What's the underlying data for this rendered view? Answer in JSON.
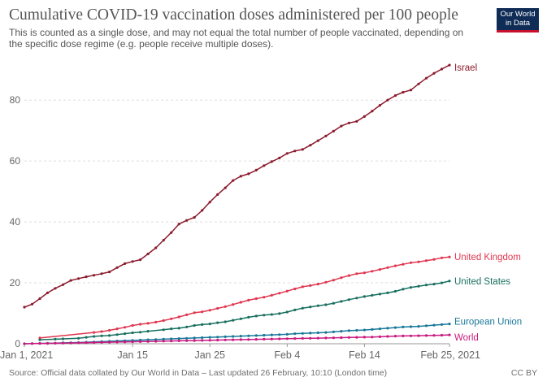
{
  "title": "Cumulative COVID-19 vaccination doses administered per 100 people",
  "subtitle": "This is counted as a single dose, and may not equal the total number of people vaccinated, depending on the specific dose regime (e.g. people receive multiple doses).",
  "logo": {
    "line1": "Our World",
    "line2": "in Data"
  },
  "footer": {
    "source": "Source: Official data collated by Our World in Data – Last updated 26 February, 10:10 (London time)",
    "license": "CC BY"
  },
  "chart_data": {
    "type": "line",
    "title": "Cumulative COVID-19 vaccination doses administered per 100 people",
    "xlabel": "",
    "ylabel": "",
    "x_range": [
      "2021-01-01",
      "2021-02-25"
    ],
    "ylim": [
      0,
      95
    ],
    "y_ticks": [
      0,
      20,
      40,
      60,
      80
    ],
    "x_ticks": [
      {
        "date": "2021-01-01",
        "label": "Jan 1, 2021"
      },
      {
        "date": "2021-01-15",
        "label": "Jan 15"
      },
      {
        "date": "2021-01-25",
        "label": "Jan 25"
      },
      {
        "date": "2021-02-04",
        "label": "Feb 4"
      },
      {
        "date": "2021-02-14",
        "label": "Feb 14"
      },
      {
        "date": "2021-02-25",
        "label": "Feb 25, 2021"
      }
    ],
    "grid": "horizontal dashed",
    "legend": "end-of-line labels",
    "series": [
      {
        "name": "Israel",
        "color": "#8c1b2d",
        "points": [
          [
            "2021-01-01",
            12.0
          ],
          [
            "2021-01-02",
            13.0
          ],
          [
            "2021-01-03",
            14.8
          ],
          [
            "2021-01-04",
            16.7
          ],
          [
            "2021-01-05",
            18.2
          ],
          [
            "2021-01-06",
            19.4
          ],
          [
            "2021-01-07",
            20.8
          ],
          [
            "2021-01-08",
            21.4
          ],
          [
            "2021-01-09",
            22.0
          ],
          [
            "2021-01-10",
            22.5
          ],
          [
            "2021-01-11",
            23.0
          ],
          [
            "2021-01-12",
            23.6
          ],
          [
            "2021-01-13",
            25.0
          ],
          [
            "2021-01-14",
            26.3
          ],
          [
            "2021-01-15",
            27.0
          ],
          [
            "2021-01-16",
            27.6
          ],
          [
            "2021-01-17",
            29.5
          ],
          [
            "2021-01-18",
            31.5
          ],
          [
            "2021-01-19",
            34.0
          ],
          [
            "2021-01-20",
            36.5
          ],
          [
            "2021-01-21",
            39.3
          ],
          [
            "2021-01-22",
            40.5
          ],
          [
            "2021-01-23",
            41.5
          ],
          [
            "2021-01-24",
            43.8
          ],
          [
            "2021-01-25",
            46.5
          ],
          [
            "2021-01-26",
            49.0
          ],
          [
            "2021-01-27",
            51.2
          ],
          [
            "2021-01-28",
            53.6
          ],
          [
            "2021-01-29",
            55.0
          ],
          [
            "2021-01-30",
            55.8
          ],
          [
            "2021-01-31",
            57.0
          ],
          [
            "2021-02-01",
            58.5
          ],
          [
            "2021-02-02",
            59.8
          ],
          [
            "2021-02-03",
            61.0
          ],
          [
            "2021-02-04",
            62.5
          ],
          [
            "2021-02-05",
            63.3
          ],
          [
            "2021-02-06",
            63.8
          ],
          [
            "2021-02-07",
            65.2
          ],
          [
            "2021-02-08",
            66.7
          ],
          [
            "2021-02-09",
            68.2
          ],
          [
            "2021-02-10",
            69.8
          ],
          [
            "2021-02-11",
            71.5
          ],
          [
            "2021-02-12",
            72.5
          ],
          [
            "2021-02-13",
            73.0
          ],
          [
            "2021-02-14",
            74.6
          ],
          [
            "2021-02-15",
            76.4
          ],
          [
            "2021-02-16",
            78.3
          ],
          [
            "2021-02-17",
            80.0
          ],
          [
            "2021-02-18",
            81.5
          ],
          [
            "2021-02-19",
            82.6
          ],
          [
            "2021-02-20",
            83.3
          ],
          [
            "2021-02-21",
            85.3
          ],
          [
            "2021-02-22",
            87.2
          ],
          [
            "2021-02-23",
            88.8
          ],
          [
            "2021-02-24",
            90.2
          ],
          [
            "2021-02-25",
            91.5
          ]
        ]
      },
      {
        "name": "United Kingdom",
        "color": "#e0364f",
        "points": [
          [
            "2021-01-03",
            1.9
          ],
          [
            "2021-01-10",
            3.7
          ],
          [
            "2021-01-11",
            4.0
          ],
          [
            "2021-01-12",
            4.4
          ],
          [
            "2021-01-13",
            4.9
          ],
          [
            "2021-01-14",
            5.4
          ],
          [
            "2021-01-15",
            6.0
          ],
          [
            "2021-01-16",
            6.4
          ],
          [
            "2021-01-17",
            6.7
          ],
          [
            "2021-01-18",
            7.1
          ],
          [
            "2021-01-19",
            7.6
          ],
          [
            "2021-01-20",
            8.2
          ],
          [
            "2021-01-21",
            8.8
          ],
          [
            "2021-01-22",
            9.5
          ],
          [
            "2021-01-23",
            10.2
          ],
          [
            "2021-01-24",
            10.5
          ],
          [
            "2021-01-25",
            11.0
          ],
          [
            "2021-01-26",
            11.6
          ],
          [
            "2021-01-27",
            12.2
          ],
          [
            "2021-01-28",
            12.9
          ],
          [
            "2021-01-29",
            13.6
          ],
          [
            "2021-01-30",
            14.3
          ],
          [
            "2021-01-31",
            14.8
          ],
          [
            "2021-02-01",
            15.3
          ],
          [
            "2021-02-02",
            15.9
          ],
          [
            "2021-02-03",
            16.6
          ],
          [
            "2021-02-04",
            17.3
          ],
          [
            "2021-02-05",
            18.0
          ],
          [
            "2021-02-06",
            18.7
          ],
          [
            "2021-02-07",
            19.1
          ],
          [
            "2021-02-08",
            19.6
          ],
          [
            "2021-02-09",
            20.2
          ],
          [
            "2021-02-10",
            20.9
          ],
          [
            "2021-02-11",
            21.7
          ],
          [
            "2021-02-12",
            22.4
          ],
          [
            "2021-02-13",
            23.0
          ],
          [
            "2021-02-14",
            23.3
          ],
          [
            "2021-02-15",
            23.8
          ],
          [
            "2021-02-16",
            24.4
          ],
          [
            "2021-02-17",
            25.0
          ],
          [
            "2021-02-18",
            25.6
          ],
          [
            "2021-02-19",
            26.1
          ],
          [
            "2021-02-20",
            26.6
          ],
          [
            "2021-02-21",
            26.9
          ],
          [
            "2021-02-22",
            27.3
          ],
          [
            "2021-02-23",
            27.7
          ],
          [
            "2021-02-24",
            28.2
          ],
          [
            "2021-02-25",
            28.5
          ]
        ]
      },
      {
        "name": "United States",
        "color": "#18705f",
        "points": [
          [
            "2021-01-03",
            1.3
          ],
          [
            "2021-01-05",
            1.5
          ],
          [
            "2021-01-06",
            1.6
          ],
          [
            "2021-01-08",
            1.8
          ],
          [
            "2021-01-09",
            2.1
          ],
          [
            "2021-01-10",
            2.4
          ],
          [
            "2021-01-11",
            2.6
          ],
          [
            "2021-01-12",
            2.7
          ],
          [
            "2021-01-13",
            3.0
          ],
          [
            "2021-01-14",
            3.3
          ],
          [
            "2021-01-15",
            3.6
          ],
          [
            "2021-01-16",
            3.8
          ],
          [
            "2021-01-17",
            4.1
          ],
          [
            "2021-01-19",
            4.6
          ],
          [
            "2021-01-20",
            4.9
          ],
          [
            "2021-01-21",
            5.1
          ],
          [
            "2021-01-22",
            5.5
          ],
          [
            "2021-01-23",
            6.0
          ],
          [
            "2021-01-24",
            6.3
          ],
          [
            "2021-01-25",
            6.5
          ],
          [
            "2021-01-26",
            6.9
          ],
          [
            "2021-01-27",
            7.2
          ],
          [
            "2021-01-28",
            7.7
          ],
          [
            "2021-01-29",
            8.2
          ],
          [
            "2021-01-30",
            8.7
          ],
          [
            "2021-01-31",
            9.1
          ],
          [
            "2021-02-01",
            9.4
          ],
          [
            "2021-02-02",
            9.6
          ],
          [
            "2021-02-03",
            9.9
          ],
          [
            "2021-02-04",
            10.4
          ],
          [
            "2021-02-05",
            11.1
          ],
          [
            "2021-02-06",
            11.7
          ],
          [
            "2021-02-07",
            12.1
          ],
          [
            "2021-02-08",
            12.5
          ],
          [
            "2021-02-09",
            12.8
          ],
          [
            "2021-02-10",
            13.3
          ],
          [
            "2021-02-11",
            13.9
          ],
          [
            "2021-02-12",
            14.5
          ],
          [
            "2021-02-13",
            15.0
          ],
          [
            "2021-02-14",
            15.5
          ],
          [
            "2021-02-15",
            15.9
          ],
          [
            "2021-02-16",
            16.3
          ],
          [
            "2021-02-17",
            16.7
          ],
          [
            "2021-02-18",
            17.2
          ],
          [
            "2021-02-19",
            17.9
          ],
          [
            "2021-02-20",
            18.5
          ],
          [
            "2021-02-21",
            18.9
          ],
          [
            "2021-02-22",
            19.3
          ],
          [
            "2021-02-23",
            19.6
          ],
          [
            "2021-02-24",
            20.0
          ],
          [
            "2021-02-25",
            20.6
          ]
        ]
      },
      {
        "name": "European Union",
        "color": "#19789a",
        "points": [
          [
            "2021-01-01",
            0.0
          ],
          [
            "2021-01-02",
            0.05
          ],
          [
            "2021-01-03",
            0.1
          ],
          [
            "2021-01-04",
            0.15
          ],
          [
            "2021-01-05",
            0.2
          ],
          [
            "2021-01-06",
            0.3
          ],
          [
            "2021-01-07",
            0.35
          ],
          [
            "2021-01-08",
            0.4
          ],
          [
            "2021-01-09",
            0.5
          ],
          [
            "2021-01-10",
            0.6
          ],
          [
            "2021-01-11",
            0.7
          ],
          [
            "2021-01-12",
            0.8
          ],
          [
            "2021-01-13",
            0.9
          ],
          [
            "2021-01-14",
            1.0
          ],
          [
            "2021-01-15",
            1.1
          ],
          [
            "2021-01-16",
            1.2
          ],
          [
            "2021-01-17",
            1.3
          ],
          [
            "2021-01-18",
            1.4
          ],
          [
            "2021-01-19",
            1.5
          ],
          [
            "2021-01-20",
            1.6
          ],
          [
            "2021-01-21",
            1.7
          ],
          [
            "2021-01-22",
            1.8
          ],
          [
            "2021-01-23",
            1.9
          ],
          [
            "2021-01-24",
            2.0
          ],
          [
            "2021-01-25",
            2.1
          ],
          [
            "2021-01-26",
            2.2
          ],
          [
            "2021-01-27",
            2.3
          ],
          [
            "2021-01-28",
            2.4
          ],
          [
            "2021-01-29",
            2.5
          ],
          [
            "2021-01-30",
            2.6
          ],
          [
            "2021-01-31",
            2.7
          ],
          [
            "2021-02-01",
            2.8
          ],
          [
            "2021-02-02",
            2.9
          ],
          [
            "2021-02-03",
            3.0
          ],
          [
            "2021-02-04",
            3.1
          ],
          [
            "2021-02-05",
            3.3
          ],
          [
            "2021-02-06",
            3.4
          ],
          [
            "2021-02-07",
            3.5
          ],
          [
            "2021-02-08",
            3.6
          ],
          [
            "2021-02-09",
            3.7
          ],
          [
            "2021-02-10",
            3.9
          ],
          [
            "2021-02-11",
            4.1
          ],
          [
            "2021-02-12",
            4.3
          ],
          [
            "2021-02-13",
            4.4
          ],
          [
            "2021-02-14",
            4.5
          ],
          [
            "2021-02-15",
            4.7
          ],
          [
            "2021-02-16",
            4.9
          ],
          [
            "2021-02-17",
            5.1
          ],
          [
            "2021-02-18",
            5.3
          ],
          [
            "2021-02-19",
            5.5
          ],
          [
            "2021-02-20",
            5.6
          ],
          [
            "2021-02-21",
            5.7
          ],
          [
            "2021-02-22",
            5.9
          ],
          [
            "2021-02-23",
            6.1
          ],
          [
            "2021-02-24",
            6.3
          ],
          [
            "2021-02-25",
            6.5
          ]
        ]
      },
      {
        "name": "World",
        "color": "#c8197f",
        "points": [
          [
            "2021-01-01",
            0.0
          ],
          [
            "2021-01-02",
            0.05
          ],
          [
            "2021-01-03",
            0.1
          ],
          [
            "2021-01-04",
            0.12
          ],
          [
            "2021-01-05",
            0.15
          ],
          [
            "2021-01-06",
            0.2
          ],
          [
            "2021-01-07",
            0.25
          ],
          [
            "2021-01-08",
            0.3
          ],
          [
            "2021-01-09",
            0.35
          ],
          [
            "2021-01-10",
            0.4
          ],
          [
            "2021-01-11",
            0.45
          ],
          [
            "2021-01-12",
            0.5
          ],
          [
            "2021-01-13",
            0.55
          ],
          [
            "2021-01-14",
            0.6
          ],
          [
            "2021-01-15",
            0.65
          ],
          [
            "2021-01-16",
            0.7
          ],
          [
            "2021-01-17",
            0.75
          ],
          [
            "2021-01-18",
            0.8
          ],
          [
            "2021-01-19",
            0.85
          ],
          [
            "2021-01-20",
            0.9
          ],
          [
            "2021-01-21",
            0.95
          ],
          [
            "2021-01-22",
            1.0
          ],
          [
            "2021-01-23",
            1.05
          ],
          [
            "2021-01-24",
            1.1
          ],
          [
            "2021-01-25",
            1.15
          ],
          [
            "2021-01-26",
            1.2
          ],
          [
            "2021-01-27",
            1.25
          ],
          [
            "2021-01-28",
            1.3
          ],
          [
            "2021-01-29",
            1.35
          ],
          [
            "2021-01-30",
            1.4
          ],
          [
            "2021-01-31",
            1.45
          ],
          [
            "2021-02-01",
            1.5
          ],
          [
            "2021-02-02",
            1.55
          ],
          [
            "2021-02-03",
            1.6
          ],
          [
            "2021-02-04",
            1.65
          ],
          [
            "2021-02-05",
            1.7
          ],
          [
            "2021-02-06",
            1.75
          ],
          [
            "2021-02-07",
            1.8
          ],
          [
            "2021-02-08",
            1.85
          ],
          [
            "2021-02-09",
            1.9
          ],
          [
            "2021-02-10",
            1.95
          ],
          [
            "2021-02-11",
            2.0
          ],
          [
            "2021-02-12",
            2.05
          ],
          [
            "2021-02-13",
            2.1
          ],
          [
            "2021-02-14",
            2.15
          ],
          [
            "2021-02-15",
            2.2
          ],
          [
            "2021-02-16",
            2.3
          ],
          [
            "2021-02-17",
            2.4
          ],
          [
            "2021-02-18",
            2.5
          ],
          [
            "2021-02-19",
            2.55
          ],
          [
            "2021-02-20",
            2.6
          ],
          [
            "2021-02-21",
            2.65
          ],
          [
            "2021-02-22",
            2.7
          ],
          [
            "2021-02-23",
            2.75
          ],
          [
            "2021-02-24",
            2.8
          ],
          [
            "2021-02-25",
            2.9
          ]
        ]
      }
    ]
  }
}
